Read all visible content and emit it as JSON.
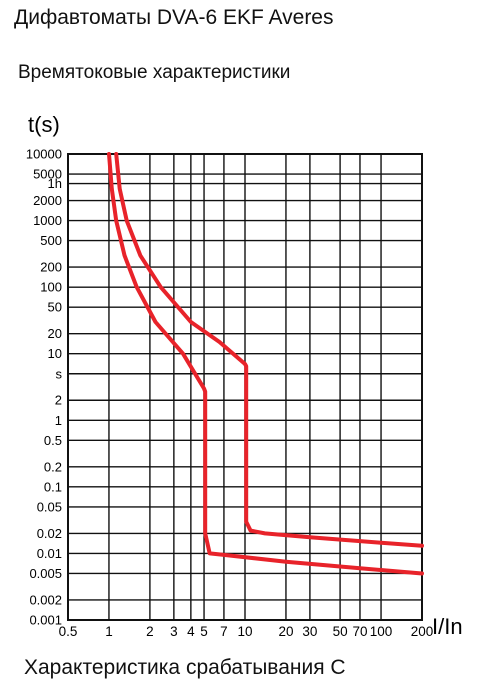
{
  "page": {
    "title": "Дифавтоматы DVA-6 EKF Averes",
    "subtitle": "Времятоковые характеристики",
    "caption": "Характеристика срабатывания C"
  },
  "chart_data": {
    "type": "line",
    "title": "Времятоковые характеристики",
    "ylabel": "t(s)",
    "xlabel": "I/In",
    "x_scale": "log",
    "y_scale": "log",
    "xlim": [
      0.5,
      200
    ],
    "ylim": [
      0.001,
      10000
    ],
    "grid": true,
    "y_ticks": [
      {
        "value": 10000,
        "label": "10000"
      },
      {
        "value": 5000,
        "label": "5000"
      },
      {
        "value": 3600,
        "label": "1h"
      },
      {
        "value": 2000,
        "label": "2000"
      },
      {
        "value": 1000,
        "label": "1000"
      },
      {
        "value": 500,
        "label": "500"
      },
      {
        "value": 200,
        "label": "200"
      },
      {
        "value": 100,
        "label": "100"
      },
      {
        "value": 50,
        "label": "50"
      },
      {
        "value": 20,
        "label": "20"
      },
      {
        "value": 10,
        "label": "10"
      },
      {
        "value": 5,
        "label": "s"
      },
      {
        "value": 2,
        "label": "2"
      },
      {
        "value": 1,
        "label": "1"
      },
      {
        "value": 0.5,
        "label": "0.5"
      },
      {
        "value": 0.2,
        "label": "0.2"
      },
      {
        "value": 0.1,
        "label": "0.1"
      },
      {
        "value": 0.05,
        "label": "0.05"
      },
      {
        "value": 0.02,
        "label": "0.02"
      },
      {
        "value": 0.01,
        "label": "0.01"
      },
      {
        "value": 0.005,
        "label": "0.005"
      },
      {
        "value": 0.002,
        "label": "0.002"
      },
      {
        "value": 0.001,
        "label": "0.001"
      }
    ],
    "x_ticks": [
      {
        "value": 0.5,
        "label": "0.5"
      },
      {
        "value": 1,
        "label": "1"
      },
      {
        "value": 2,
        "label": "2"
      },
      {
        "value": 3,
        "label": "3"
      },
      {
        "value": 4,
        "label": "4"
      },
      {
        "value": 5,
        "label": "5"
      },
      {
        "value": 7,
        "label": "7"
      },
      {
        "value": 10,
        "label": "10"
      },
      {
        "value": 20,
        "label": "20"
      },
      {
        "value": 30,
        "label": "30"
      },
      {
        "value": 50,
        "label": "50"
      },
      {
        "value": 70,
        "label": "70"
      },
      {
        "value": 100,
        "label": "100"
      },
      {
        "value": 200,
        "label": "200"
      }
    ],
    "series": [
      {
        "color": "#e8232a",
        "points": [
          [
            1.0,
            10000
          ],
          [
            1.05,
            3000
          ],
          [
            1.13,
            1000
          ],
          [
            1.3,
            300
          ],
          [
            1.6,
            100
          ],
          [
            2.2,
            30
          ],
          [
            3.5,
            10
          ],
          [
            5.0,
            3
          ],
          [
            5.1,
            2.7
          ],
          [
            5.1,
            0.02
          ],
          [
            5.5,
            0.01
          ],
          [
            7,
            0.0095
          ],
          [
            20,
            0.0075
          ],
          [
            70,
            0.006
          ],
          [
            200,
            0.005
          ]
        ]
      },
      {
        "color": "#e8232a",
        "points": [
          [
            1.13,
            10000
          ],
          [
            1.2,
            3000
          ],
          [
            1.35,
            1000
          ],
          [
            1.7,
            300
          ],
          [
            2.4,
            100
          ],
          [
            4.0,
            30
          ],
          [
            6.5,
            15
          ],
          [
            10,
            7
          ],
          [
            10.2,
            6.5
          ],
          [
            10.2,
            0.03
          ],
          [
            11,
            0.022
          ],
          [
            14,
            0.02
          ],
          [
            30,
            0.0175
          ],
          [
            100,
            0.0145
          ],
          [
            200,
            0.013
          ]
        ]
      }
    ]
  }
}
